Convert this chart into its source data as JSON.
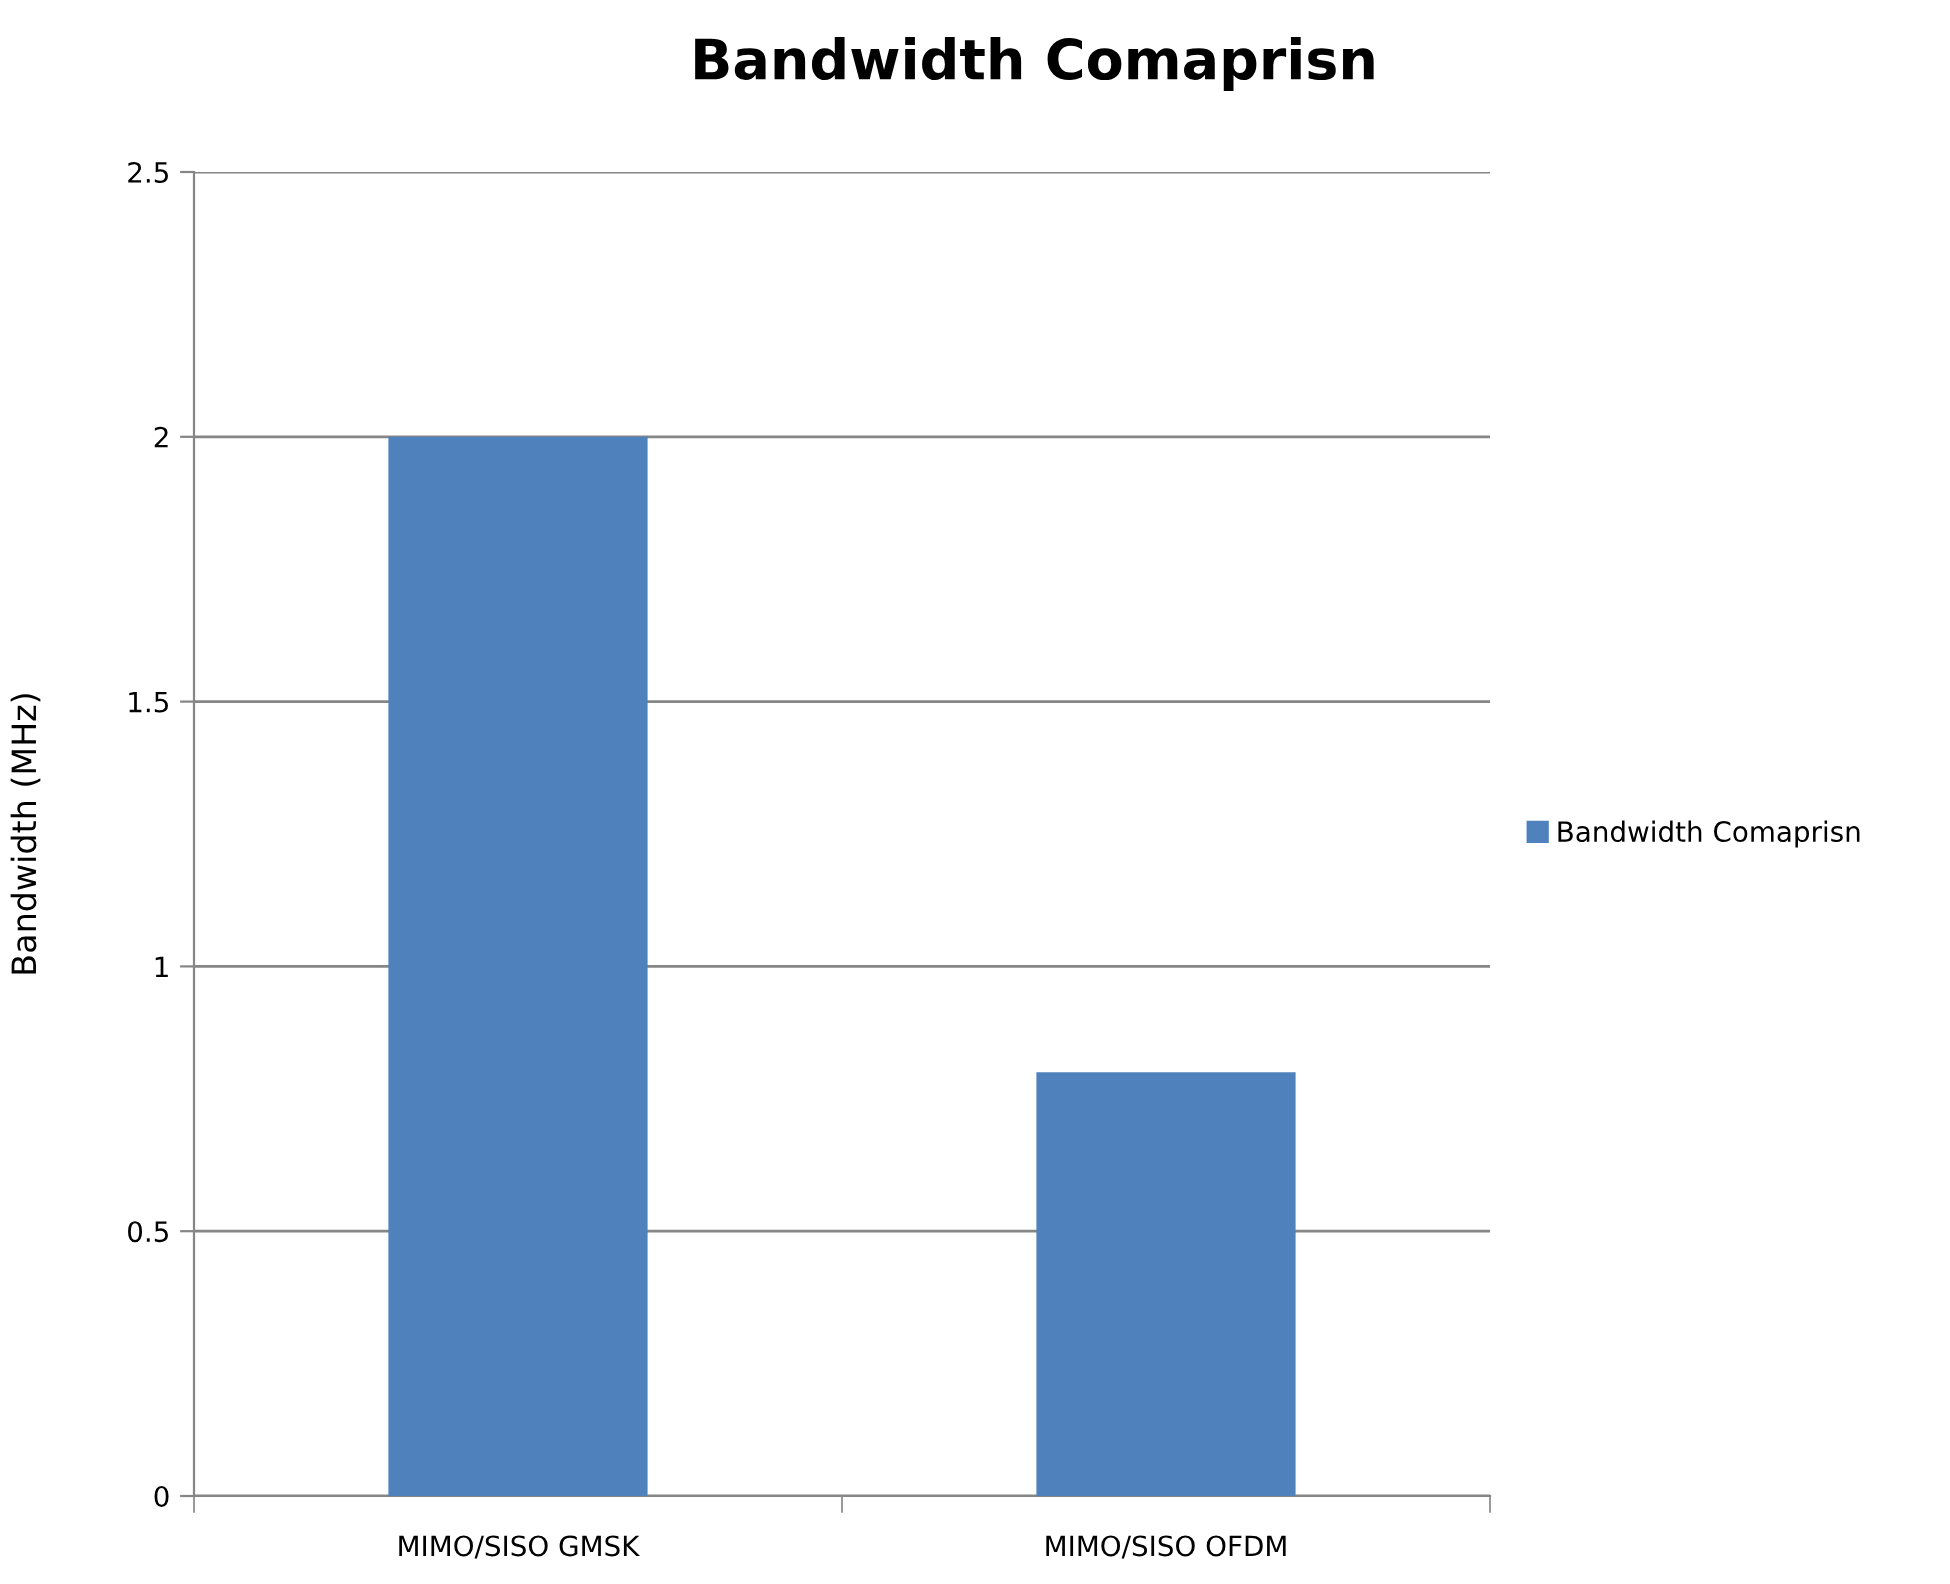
{
  "chart_data": {
    "type": "bar",
    "title": "Bandwidth Comaprisn",
    "ylabel": "Bandwidth (MHz)",
    "categories": [
      "MIMO/SISO GMSK",
      "MIMO/SISO OFDM"
    ],
    "series": [
      {
        "name": "Bandwidth Comaprisn",
        "color": "#4f81bd",
        "values": [
          2,
          0.8
        ]
      }
    ],
    "ylim": [
      0,
      2.5
    ],
    "yticks": [
      0,
      0.5,
      1,
      1.5,
      2,
      2.5
    ],
    "grid": "y",
    "legend": "right"
  }
}
